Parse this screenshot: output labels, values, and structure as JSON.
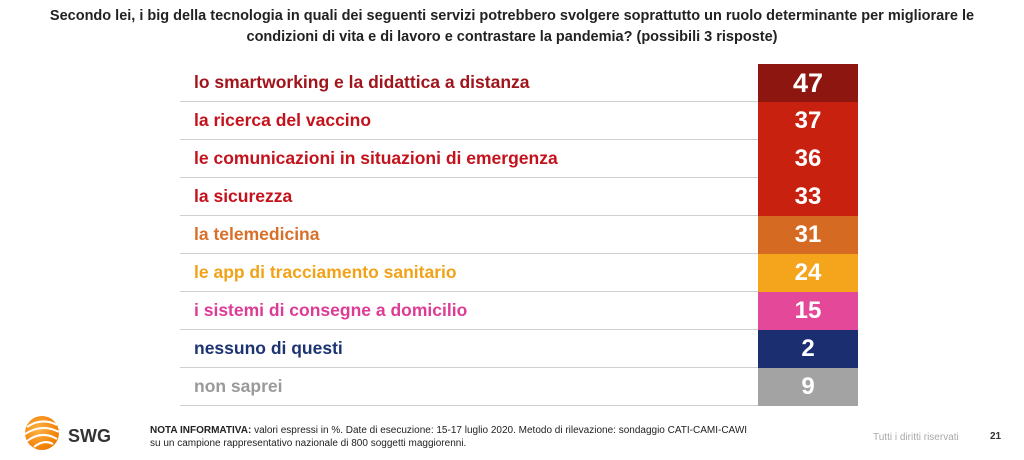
{
  "question": {
    "line1": "Secondo lei, i big della tecnologia in quali dei seguenti servizi potrebbero svolgere soprattutto un ruolo determinante per migliorare le",
    "line2": "condizioni di vita e di lavoro e contrastare la pandemia? (possibili 3 risposte)"
  },
  "chart_data": {
    "type": "table",
    "title": "Secondo lei, i big della tecnologia in quali dei seguenti servizi potrebbero svolgere soprattutto un ruolo determinante per migliorare le condizioni di vita e di lavoro e contrastare la pandemia? (possibili 3 risposte)",
    "categories": [
      "lo smartworking e la didattica a distanza",
      "la ricerca del vaccino",
      "le comunicazioni in situazioni di emergenza",
      "la sicurezza",
      "la telemedicina",
      "le app di tracciamento sanitario",
      "i sistemi di consegne a domicilio",
      "nessuno di questi",
      "non saprei"
    ],
    "values": [
      47,
      37,
      36,
      33,
      31,
      24,
      15,
      2,
      9
    ],
    "label_colors": [
      "#a0151b",
      "#c4121c",
      "#c4121c",
      "#c4121c",
      "#d8702a",
      "#f0a318",
      "#dd3c96",
      "#1d3473",
      "#9a9a9a"
    ],
    "cell_colors": [
      "#8d1610",
      "#c8210f",
      "#c8210f",
      "#c8210f",
      "#d56b22",
      "#f5a51c",
      "#e44999",
      "#1b2f70",
      "#a3a3a3"
    ]
  },
  "logo": {
    "text": "SWG"
  },
  "footer": {
    "note_label": "NOTA INFORMATIVA:",
    "note_line1": "valori espressi in %. Date di esecuzione: 15-17 luglio 2020. Metodo di rilevazione: sondaggio CATI-CAMI-CAWI",
    "note_line2": "su un campione rappresentativo nazionale di 800 soggetti maggiorenni.",
    "rights": "Tutti i diritti riservati",
    "page": "21"
  }
}
